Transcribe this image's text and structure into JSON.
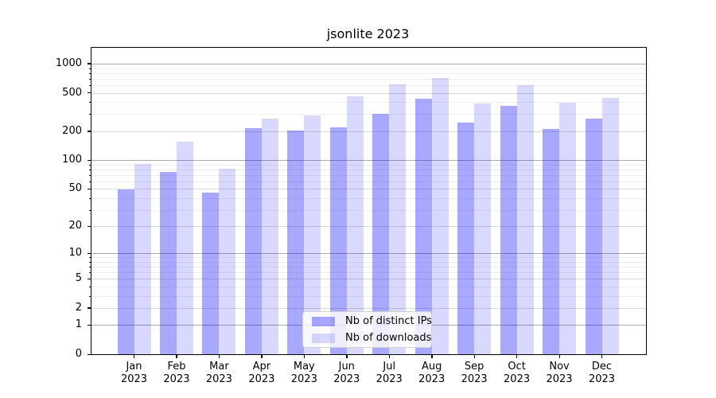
{
  "title": "jsonlite 2023",
  "chart_data": {
    "type": "bar",
    "title": "jsonlite 2023",
    "categories": [
      "Jan 2023",
      "Feb 2023",
      "Mar 2023",
      "Apr 2023",
      "May 2023",
      "Jun 2023",
      "Jul 2023",
      "Aug 2023",
      "Sep 2023",
      "Oct 2023",
      "Nov 2023",
      "Dec 2023"
    ],
    "series": [
      {
        "name": "Nb of distinct IPs",
        "color": "#0000ff57",
        "values": [
          49,
          76,
          46,
          215,
          205,
          221,
          302,
          435,
          247,
          368,
          212,
          272
        ]
      },
      {
        "name": "Nb of downloads",
        "color": "#0000ff26",
        "values": [
          91,
          156,
          82,
          268,
          290,
          459,
          616,
          718,
          385,
          598,
          394,
          445
        ]
      }
    ],
    "xlabel": "",
    "ylabel": "",
    "yscale": "log1p",
    "yticks": [
      0,
      1,
      2,
      5,
      10,
      20,
      50,
      100,
      200,
      500,
      1000
    ],
    "minor_yticks": [
      3,
      4,
      6,
      7,
      8,
      9,
      30,
      40,
      60,
      70,
      80,
      90,
      300,
      400,
      600,
      700,
      800,
      900
    ],
    "ylim": [
      0,
      1430
    ],
    "grid": "on",
    "legend_position": "lower center"
  }
}
